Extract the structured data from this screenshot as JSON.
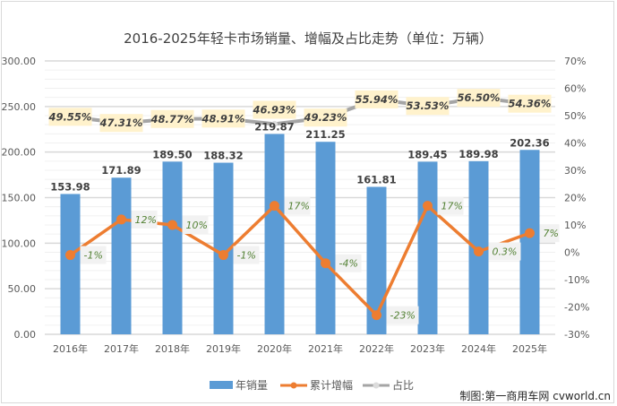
{
  "chart_data": {
    "type": "bar",
    "title": "2016-2025年轻卡市场销量、增幅及占比走势（单位：万辆）",
    "categories": [
      "2016年",
      "2017年",
      "2018年",
      "2019年",
      "2020年",
      "2021年",
      "2022年",
      "2023年",
      "2024年",
      "2025年"
    ],
    "series": [
      {
        "name": "年销量",
        "type": "bar",
        "axis": "left",
        "color": "#5b9bd5",
        "values": [
          153.98,
          171.89,
          189.5,
          188.32,
          219.87,
          211.25,
          161.81,
          189.45,
          189.98,
          202.36
        ],
        "labels": [
          "153.98",
          "171.89",
          "189.50",
          "188.32",
          "219.87",
          "211.25",
          "161.81",
          "189.45",
          "189.98",
          "202.36"
        ]
      },
      {
        "name": "累计增幅",
        "type": "line",
        "axis": "right",
        "color": "#ed7d31",
        "values": [
          -1,
          12,
          10,
          -1,
          17,
          -4,
          -23,
          17,
          0.3,
          7
        ],
        "labels": [
          "-1%",
          "12%",
          "10%",
          "-1%",
          "17%",
          "-4%",
          "-23%",
          "17%",
          "0.3%",
          "7%"
        ]
      },
      {
        "name": "占比",
        "type": "line",
        "axis": "right",
        "color": "#a5a5a5",
        "values": [
          49.55,
          47.31,
          48.77,
          48.91,
          46.93,
          49.23,
          55.94,
          53.53,
          56.5,
          54.36
        ],
        "labels": [
          "49.55%",
          "47.31%",
          "48.77%",
          "48.91%",
          "46.93%",
          "49.23%",
          "55.94%",
          "53.53%",
          "56.50%",
          "54.36%"
        ]
      }
    ],
    "ylim_left": [
      0,
      300
    ],
    "yticks_left": [
      "0.00",
      "50.00",
      "100.00",
      "150.00",
      "200.00",
      "250.00",
      "300.00"
    ],
    "ylim_right": [
      -30,
      70
    ],
    "yticks_right": [
      "-30%",
      "-20%",
      "-10%",
      "0%",
      "10%",
      "20%",
      "30%",
      "40%",
      "50%",
      "60%",
      "70%"
    ],
    "grid": true,
    "legend": "bottom"
  },
  "credit": "制图:第一商用车网 cvworld.cn"
}
